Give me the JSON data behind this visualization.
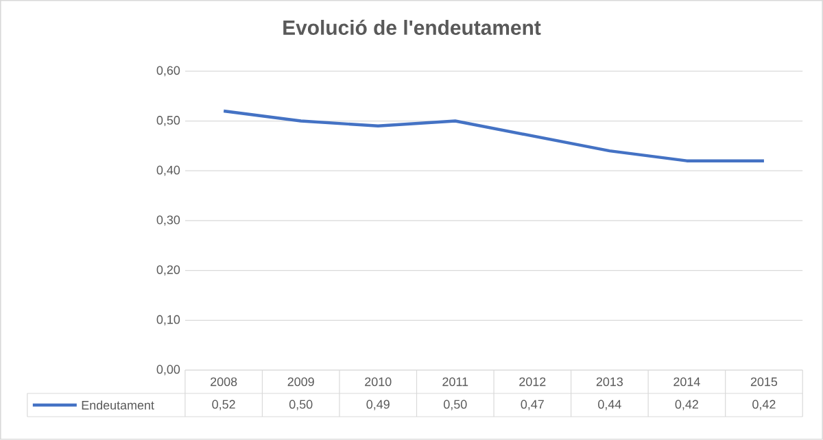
{
  "chart_data": {
    "type": "line",
    "title": "Evolució de l'endeutament",
    "categories": [
      "2008",
      "2009",
      "2010",
      "2011",
      "2012",
      "2013",
      "2014",
      "2015"
    ],
    "series": [
      {
        "name": "Endeutament",
        "color": "#4472c4",
        "values": [
          0.52,
          0.5,
          0.49,
          0.5,
          0.47,
          0.44,
          0.42,
          0.42
        ],
        "value_labels": [
          "0,52",
          "0,50",
          "0,49",
          "0,50",
          "0,47",
          "0,44",
          "0,42",
          "0,42"
        ]
      }
    ],
    "ylim": [
      0,
      0.6
    ],
    "yticks": [
      {
        "value": 0,
        "label": "0,00"
      },
      {
        "value": 0.1,
        "label": "0,10"
      },
      {
        "value": 0.2,
        "label": "0,20"
      },
      {
        "value": 0.3,
        "label": "0,30"
      },
      {
        "value": 0.4,
        "label": "0,40"
      },
      {
        "value": 0.5,
        "label": "0,50"
      },
      {
        "value": 0.6,
        "label": "0,60"
      }
    ],
    "grid": "y",
    "legend": "bottom",
    "marker": "none",
    "line_style": "solid"
  }
}
